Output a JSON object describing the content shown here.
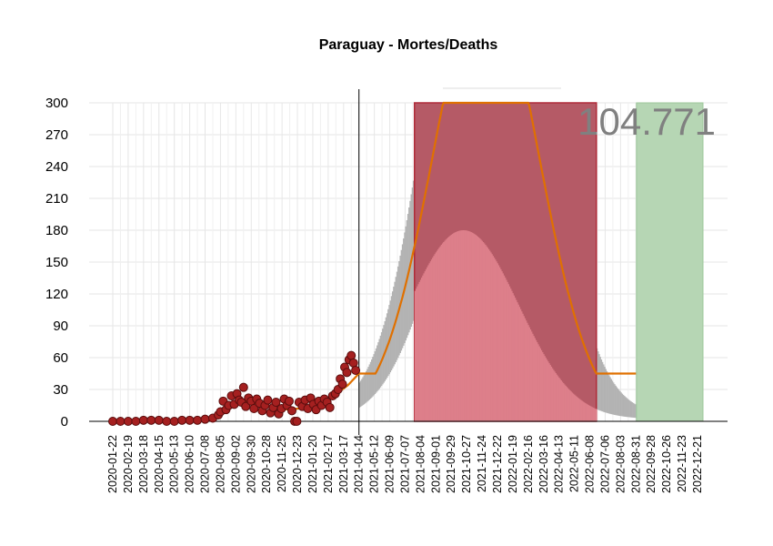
{
  "chart_data": {
    "type": "line",
    "title": "Paraguay - Mortes/Deaths",
    "xlabel": "",
    "ylabel": "",
    "ylim": [
      0,
      300
    ],
    "yticks": [
      0,
      30,
      60,
      90,
      120,
      150,
      180,
      210,
      240,
      270,
      300
    ],
    "x_start": "2020-01-22",
    "x_end": "2022-12-31",
    "x_ticks": [
      "2020-01-22",
      "2020-02-19",
      "2020-03-18",
      "2020-04-15",
      "2020-05-13",
      "2020-06-10",
      "2020-07-08",
      "2020-08-05",
      "2020-09-02",
      "2020-09-30",
      "2020-10-28",
      "2020-11-25",
      "2020-12-23",
      "2021-01-20",
      "2021-02-17",
      "2021-03-17",
      "2021-04-14",
      "2021-05-12",
      "2021-06-09",
      "2021-07-07",
      "2021-08-04",
      "2021-09-01",
      "2021-09-29",
      "2021-10-27",
      "2021-11-24",
      "2021-12-22",
      "2022-01-19",
      "2022-02-16",
      "2022-03-16",
      "2022-04-13",
      "2022-05-11",
      "2022-06-08",
      "2022-07-06",
      "2022-08-03",
      "2022-08-31",
      "2022-09-28",
      "2022-10-26",
      "2022-11-23",
      "2022-12-21"
    ],
    "grid": true,
    "annotation_value": "104.771",
    "vertical_line_date": "2021-04-14",
    "observed_points": [
      {
        "date": "2020-01-22",
        "y": 0
      },
      {
        "date": "2020-02-05",
        "y": 0
      },
      {
        "date": "2020-02-19",
        "y": 0
      },
      {
        "date": "2020-03-04",
        "y": 0
      },
      {
        "date": "2020-03-18",
        "y": 1
      },
      {
        "date": "2020-04-01",
        "y": 1
      },
      {
        "date": "2020-04-15",
        "y": 1
      },
      {
        "date": "2020-04-29",
        "y": 0
      },
      {
        "date": "2020-05-13",
        "y": 0
      },
      {
        "date": "2020-05-27",
        "y": 1
      },
      {
        "date": "2020-06-10",
        "y": 1
      },
      {
        "date": "2020-06-24",
        "y": 1
      },
      {
        "date": "2020-07-08",
        "y": 2
      },
      {
        "date": "2020-07-22",
        "y": 3
      },
      {
        "date": "2020-08-01",
        "y": 6
      },
      {
        "date": "2020-08-05",
        "y": 9
      },
      {
        "date": "2020-08-10",
        "y": 19
      },
      {
        "date": "2020-08-15",
        "y": 11
      },
      {
        "date": "2020-08-20",
        "y": 15
      },
      {
        "date": "2020-08-25",
        "y": 24
      },
      {
        "date": "2020-08-30",
        "y": 16
      },
      {
        "date": "2020-09-04",
        "y": 26
      },
      {
        "date": "2020-09-08",
        "y": 20
      },
      {
        "date": "2020-09-12",
        "y": 18
      },
      {
        "date": "2020-09-16",
        "y": 32
      },
      {
        "date": "2020-09-20",
        "y": 14
      },
      {
        "date": "2020-09-25",
        "y": 22
      },
      {
        "date": "2020-09-30",
        "y": 19
      },
      {
        "date": "2020-10-05",
        "y": 12
      },
      {
        "date": "2020-10-10",
        "y": 21
      },
      {
        "date": "2020-10-15",
        "y": 17
      },
      {
        "date": "2020-10-20",
        "y": 10
      },
      {
        "date": "2020-10-25",
        "y": 15
      },
      {
        "date": "2020-10-30",
        "y": 20
      },
      {
        "date": "2020-11-04",
        "y": 8
      },
      {
        "date": "2020-11-09",
        "y": 13
      },
      {
        "date": "2020-11-14",
        "y": 18
      },
      {
        "date": "2020-11-19",
        "y": 7
      },
      {
        "date": "2020-11-24",
        "y": 12
      },
      {
        "date": "2020-11-29",
        "y": 21
      },
      {
        "date": "2020-12-04",
        "y": 15
      },
      {
        "date": "2020-12-08",
        "y": 19
      },
      {
        "date": "2020-12-13",
        "y": 10
      },
      {
        "date": "2020-12-18",
        "y": 0
      },
      {
        "date": "2020-12-22",
        "y": 0
      },
      {
        "date": "2020-12-26",
        "y": 18
      },
      {
        "date": "2021-01-01",
        "y": 14
      },
      {
        "date": "2021-01-06",
        "y": 20
      },
      {
        "date": "2021-01-11",
        "y": 12
      },
      {
        "date": "2021-01-16",
        "y": 22
      },
      {
        "date": "2021-01-21",
        "y": 16
      },
      {
        "date": "2021-01-26",
        "y": 11
      },
      {
        "date": "2021-01-31",
        "y": 19
      },
      {
        "date": "2021-02-05",
        "y": 15
      },
      {
        "date": "2021-02-10",
        "y": 21
      },
      {
        "date": "2021-02-15",
        "y": 18
      },
      {
        "date": "2021-02-20",
        "y": 13
      },
      {
        "date": "2021-02-25",
        "y": 24
      },
      {
        "date": "2021-03-02",
        "y": 26
      },
      {
        "date": "2021-03-07",
        "y": 30
      },
      {
        "date": "2021-03-11",
        "y": 40
      },
      {
        "date": "2021-03-15",
        "y": 35
      },
      {
        "date": "2021-03-19",
        "y": 51
      },
      {
        "date": "2021-03-23",
        "y": 46
      },
      {
        "date": "2021-03-27",
        "y": 58
      },
      {
        "date": "2021-03-31",
        "y": 62
      },
      {
        "date": "2021-04-04",
        "y": 55
      },
      {
        "date": "2021-04-08",
        "y": 48
      }
    ],
    "ci_band": {
      "start": "2021-04-14",
      "end": "2022-08-31",
      "peak_date": "2021-12-01",
      "lower_peak": 178,
      "upper_cap": 300
    },
    "red_region": {
      "start": "2021-07-24",
      "end": "2022-06-20",
      "y_max": 300
    },
    "pink_region": {
      "start": "2021-07-24",
      "end": "2022-06-20",
      "peak_date": "2021-10-20",
      "y_peak": 178
    },
    "green_region": {
      "start": "2022-09-01",
      "end": "2022-12-31",
      "y_max": 300
    },
    "colors": {
      "points": "#8b1a1a",
      "fit_line": "#e07000",
      "ci_band": "#b3b3b3",
      "red_region": "#b55a66",
      "pink_region": "#dd7f8a",
      "green_region": "#b6d6b4",
      "vline": "#000000"
    }
  }
}
